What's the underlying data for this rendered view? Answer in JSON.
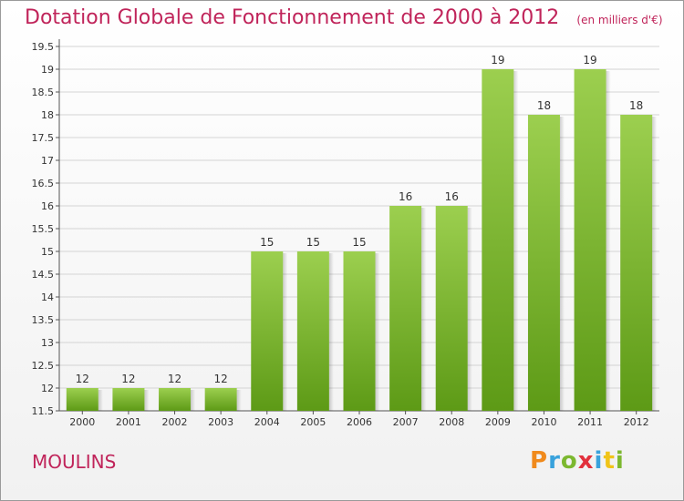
{
  "chart_data": {
    "type": "bar",
    "title": "Dotation Globale de Fonctionnement de 2000 à 2012",
    "subtitle": "(en milliers d'€)",
    "categories": [
      "2000",
      "2001",
      "2002",
      "2003",
      "2004",
      "2005",
      "2006",
      "2007",
      "2008",
      "2009",
      "2010",
      "2011",
      "2012"
    ],
    "values": [
      12,
      12,
      12,
      12,
      15,
      15,
      15,
      16,
      16,
      19,
      18,
      19,
      18
    ],
    "ylim": [
      11.5,
      19.5
    ],
    "yticks": [
      "11.5",
      "12",
      "12.5",
      "13",
      "13.5",
      "14",
      "14.5",
      "15",
      "15.5",
      "16",
      "16.5",
      "17",
      "17.5",
      "18",
      "18.5",
      "19",
      "19.5"
    ],
    "grid": true,
    "colors": {
      "bar_top": "#9ccf4f",
      "bar_bottom": "#5d9a16",
      "title": "#c0245a",
      "grid": "#d4d4d4"
    }
  },
  "footer": {
    "town": "MOULINS"
  },
  "logo": {
    "letters": [
      "P",
      "r",
      "o",
      "x",
      "i",
      "t",
      "i"
    ],
    "colors": [
      "#f08a1c",
      "#39a2dc",
      "#7cb82f",
      "#e2303c",
      "#39a2dc",
      "#f0c419",
      "#7cb82f"
    ]
  }
}
